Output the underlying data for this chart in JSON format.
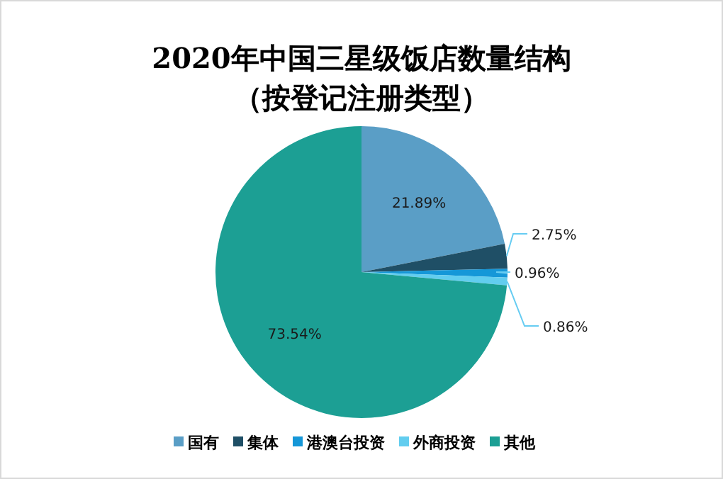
{
  "chart_data": {
    "type": "pie",
    "title": "2020年中国三星级饭店数量结构",
    "subtitle": "（按登记注册类型）",
    "categories": [
      "国有",
      "集体",
      "港澳台投资",
      "外商投资",
      "其他"
    ],
    "values": [
      21.89,
      2.75,
      0.96,
      0.86,
      73.54
    ],
    "colors": [
      "#5a9ec6",
      "#1f4f66",
      "#1597d8",
      "#62cdef",
      "#1c9f94"
    ],
    "value_labels": [
      "21.89%",
      "2.75%",
      "0.96%",
      "0.86%",
      "73.54%"
    ],
    "legend": "bottom"
  }
}
